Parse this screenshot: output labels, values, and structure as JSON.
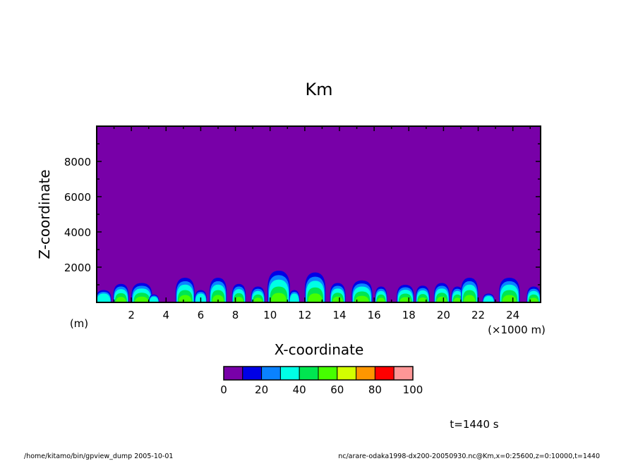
{
  "chart_data": {
    "type": "heatmap",
    "title": "Km",
    "xlabel": "X-coordinate",
    "ylabel": "Z-coordinate",
    "x_unit": "(×1000 m)",
    "y_unit": "(m)",
    "xlim": [
      0,
      25.6
    ],
    "ylim": [
      0,
      10000
    ],
    "x_ticks": [
      2,
      4,
      6,
      8,
      10,
      12,
      14,
      16,
      18,
      20,
      22,
      24
    ],
    "x_tick_labels": [
      "2",
      "4",
      "6",
      "8",
      "10",
      "12",
      "14",
      "16",
      "18",
      "20",
      "22",
      "24"
    ],
    "y_ticks": [
      2000,
      4000,
      6000,
      8000
    ],
    "y_tick_labels": [
      "2000",
      "4000",
      "6000",
      "8000"
    ],
    "color_levels": [
      0,
      10,
      20,
      30,
      40,
      50,
      60,
      70,
      80,
      90,
      100
    ],
    "colorbar_labels": [
      "0",
      "20",
      "40",
      "60",
      "80",
      "100"
    ],
    "colors": [
      "#7800a8",
      "#0000e6",
      "#0a82ff",
      "#00ffe6",
      "#00e650",
      "#46ff00",
      "#d2ff00",
      "#ff9600",
      "#ff0000",
      "#ff9696"
    ],
    "plumes": [
      {
        "x": 0.4,
        "top": 700,
        "halfwidth": 0.45
      },
      {
        "x": 1.4,
        "top": 1050,
        "halfwidth": 0.45
      },
      {
        "x": 2.6,
        "top": 1100,
        "halfwidth": 0.6
      },
      {
        "x": 3.3,
        "top": 450,
        "halfwidth": 0.3
      },
      {
        "x": 5.1,
        "top": 1400,
        "halfwidth": 0.55
      },
      {
        "x": 6.0,
        "top": 700,
        "halfwidth": 0.35
      },
      {
        "x": 7.0,
        "top": 1400,
        "halfwidth": 0.5
      },
      {
        "x": 8.2,
        "top": 1050,
        "halfwidth": 0.4
      },
      {
        "x": 9.3,
        "top": 900,
        "halfwidth": 0.4
      },
      {
        "x": 10.5,
        "top": 1800,
        "halfwidth": 0.65
      },
      {
        "x": 11.4,
        "top": 700,
        "halfwidth": 0.3
      },
      {
        "x": 12.6,
        "top": 1700,
        "halfwidth": 0.6
      },
      {
        "x": 13.9,
        "top": 1100,
        "halfwidth": 0.45
      },
      {
        "x": 15.3,
        "top": 1250,
        "halfwidth": 0.6
      },
      {
        "x": 16.4,
        "top": 900,
        "halfwidth": 0.35
      },
      {
        "x": 17.8,
        "top": 1000,
        "halfwidth": 0.5
      },
      {
        "x": 18.8,
        "top": 950,
        "halfwidth": 0.4
      },
      {
        "x": 19.9,
        "top": 1100,
        "halfwidth": 0.45
      },
      {
        "x": 20.8,
        "top": 900,
        "halfwidth": 0.35
      },
      {
        "x": 21.5,
        "top": 1400,
        "halfwidth": 0.5
      },
      {
        "x": 22.6,
        "top": 500,
        "halfwidth": 0.35
      },
      {
        "x": 23.8,
        "top": 1400,
        "halfwidth": 0.6
      },
      {
        "x": 25.2,
        "top": 900,
        "halfwidth": 0.4
      }
    ]
  },
  "annotations": {
    "time": "t=1440 s",
    "footer_left": "/home/kitamo/bin/gpview_dump  2005-10-01",
    "footer_right": "nc/arare-odaka1998-dx200-20050930.nc@Km,x=0:25600,z=0:10000,t=1440"
  }
}
